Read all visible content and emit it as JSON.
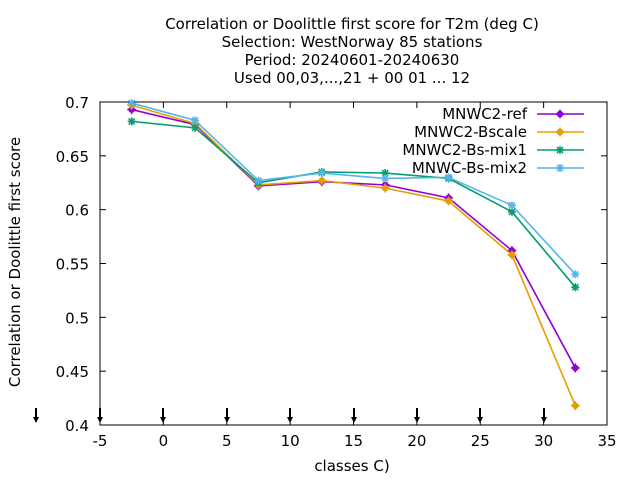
{
  "chart_data": {
    "type": "line",
    "title_lines": [
      "Correlation or Doolittle first score  for T2m (deg C)",
      "Selection: WestNorway     85 stations",
      "Period: 20240601-20240630",
      "Used 00,03,...,21 + 00 01 ... 12"
    ],
    "xlabel": "classes C)",
    "ylabel": "Correlation or Doolittle first score",
    "xlim": [
      -5,
      35
    ],
    "ylim": [
      0.4,
      0.7
    ],
    "xticks": [
      -5,
      0,
      5,
      10,
      15,
      20,
      25,
      30,
      35
    ],
    "yticks": [
      0.4,
      0.45,
      0.5,
      0.55,
      0.6,
      0.65,
      0.7
    ],
    "xtick_labels": [
      "-5",
      "0",
      "5",
      "10",
      "15",
      "20",
      "25",
      "30",
      "35"
    ],
    "ytick_labels": [
      "0.4",
      "0.45",
      "0.5",
      "0.55",
      "0.6",
      "0.65",
      "0.7"
    ],
    "arrow_x": [
      -10,
      -5,
      0,
      5,
      10,
      15,
      20,
      25,
      30
    ],
    "legend_position": "top-right",
    "grid": false,
    "x": [
      -2.5,
      2.5,
      7.5,
      12.5,
      17.5,
      22.5,
      27.5,
      32.5
    ],
    "series": [
      {
        "name": "MNWC2-ref",
        "color": "#9400d3",
        "marker": "circle",
        "values": [
          0.693,
          0.679,
          0.622,
          0.626,
          0.623,
          0.611,
          0.562,
          0.453
        ]
      },
      {
        "name": "MNWC2-Bscale",
        "color": "#e69f00",
        "marker": "circle",
        "values": [
          0.697,
          0.68,
          0.623,
          0.627,
          0.62,
          0.608,
          0.558,
          0.418
        ]
      },
      {
        "name": "MNWC2-Bs-mix1",
        "color": "#009e73",
        "marker": "star",
        "values": [
          0.682,
          0.676,
          0.625,
          0.635,
          0.634,
          0.629,
          0.598,
          0.528
        ]
      },
      {
        "name": "MNWC-Bs-mix2",
        "color": "#56b4e9",
        "marker": "star",
        "values": [
          0.699,
          0.683,
          0.627,
          0.634,
          0.629,
          0.63,
          0.604,
          0.54
        ]
      }
    ]
  }
}
